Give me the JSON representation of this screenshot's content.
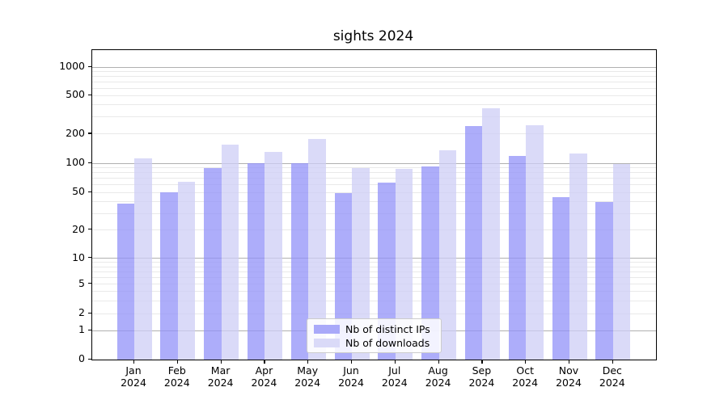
{
  "title": "sights 2024",
  "legend": {
    "items": [
      {
        "label": "Nb of distinct IPs",
        "color": "#a9a9f9"
      },
      {
        "label": "Nb of downloads",
        "color": "#dadaf8"
      }
    ]
  },
  "colors": {
    "bar_ips": "rgba(146,146,248,0.75)",
    "bar_downloads": "rgba(206,206,245,0.75)",
    "grid_major": "#b0b0b0",
    "grid_minor": "#e9e9e9"
  },
  "chart_data": {
    "type": "bar",
    "title": "sights 2024",
    "scale": "symlog",
    "grid": "on",
    "legend_position": "bottom-center-inside",
    "categories": [
      "Jan",
      "Feb",
      "Mar",
      "Apr",
      "May",
      "Jun",
      "Jul",
      "Aug",
      "Sep",
      "Oct",
      "Nov",
      "Dec"
    ],
    "year": "2024",
    "series": [
      {
        "name": "Nb of distinct IPs",
        "values": [
          38,
          50,
          89,
          100,
          100,
          49,
          63,
          92,
          240,
          119,
          44,
          39
        ]
      },
      {
        "name": "Nb of downloads",
        "values": [
          112,
          64,
          155,
          130,
          175,
          88,
          87,
          134,
          368,
          243,
          125,
          97
        ]
      }
    ],
    "xlabel": "",
    "ylabel": "",
    "ylim": [
      0,
      1490
    ],
    "y_ticks": [
      {
        "value": 1000,
        "label": "1000"
      },
      {
        "value": 500,
        "label": "500"
      },
      {
        "value": 200,
        "label": "200"
      },
      {
        "value": 100,
        "label": "100"
      },
      {
        "value": 50,
        "label": "50"
      },
      {
        "value": 20,
        "label": "20"
      },
      {
        "value": 10,
        "label": "10"
      },
      {
        "value": 5,
        "label": "5"
      },
      {
        "value": 2,
        "label": "2"
      },
      {
        "value": 1,
        "label": "1"
      },
      {
        "value": 0,
        "label": "0"
      }
    ]
  }
}
